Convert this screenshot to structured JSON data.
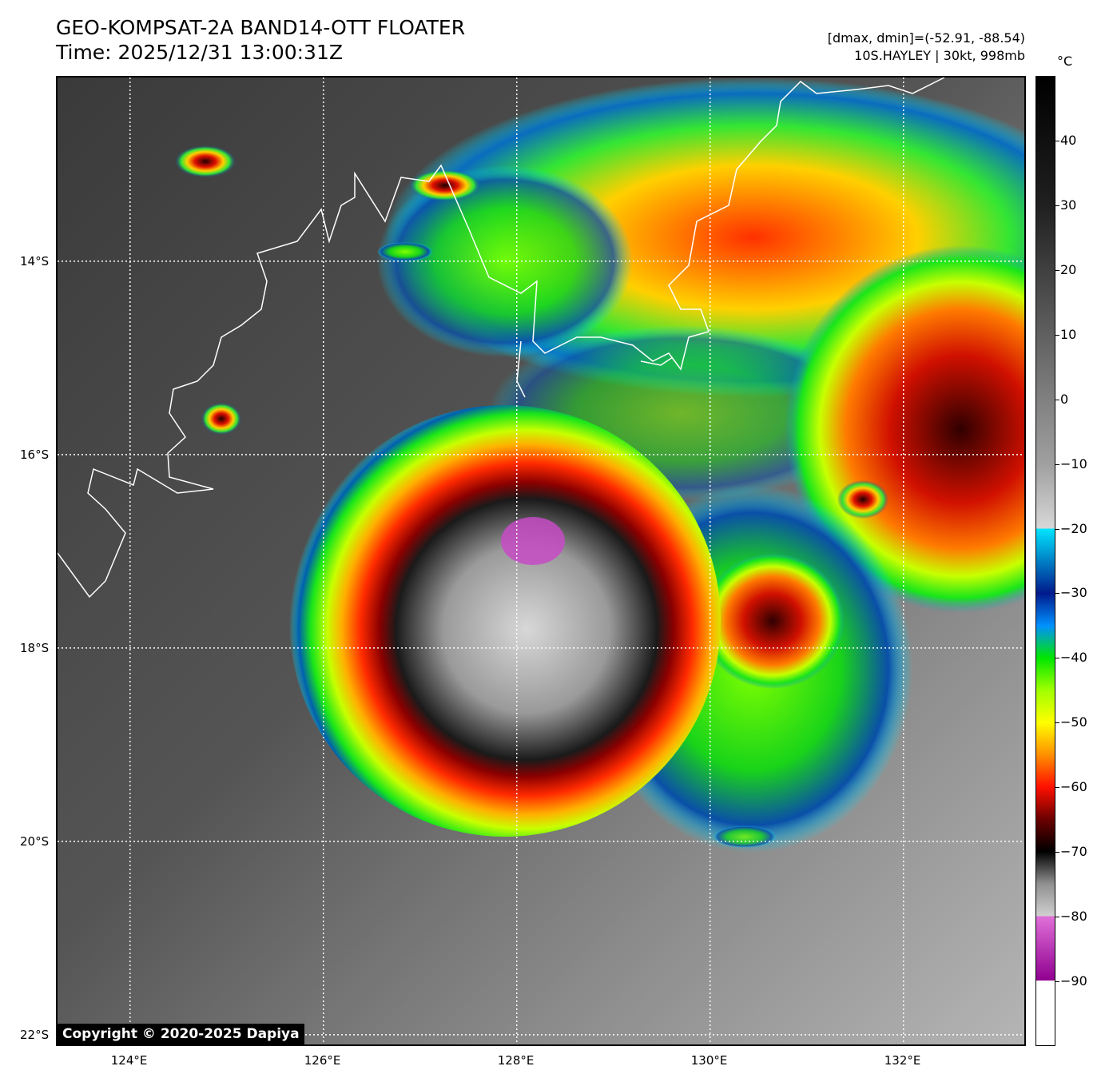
{
  "header": {
    "title_line1": "GEO-KOMPSAT-2A BAND14-OTT FLOATER",
    "title_line2": "Time: 2025/12/31 13:00:31Z",
    "info_line1": "[dmax, dmin]=(-52.91, -88.54)",
    "info_line2": "10S.HAYLEY | 30kt, 998mb"
  },
  "map": {
    "lon_range": [
      123.25,
      133.25
    ],
    "lat_range": [
      -22.1,
      -12.1
    ],
    "lon_ticks": [
      {
        "value": 124,
        "label": "124°E"
      },
      {
        "value": 126,
        "label": "126°E"
      },
      {
        "value": 128,
        "label": "128°E"
      },
      {
        "value": 130,
        "label": "130°E"
      },
      {
        "value": 132,
        "label": "132°E"
      }
    ],
    "lat_ticks": [
      {
        "value": -14,
        "label": "14°S"
      },
      {
        "value": -16,
        "label": "16°S"
      },
      {
        "value": -18,
        "label": "18°S"
      },
      {
        "value": -20,
        "label": "20°S"
      },
      {
        "value": -22,
        "label": "22°S"
      }
    ],
    "gridlines": "dotted",
    "gridline_color": "#ffffff",
    "coastline_color": "#ffffff",
    "storm_center": {
      "lon": 128.2,
      "lat": -17.2
    }
  },
  "colorbar": {
    "unit": "°C",
    "range": [
      -100,
      50
    ],
    "ticks": [
      40,
      30,
      20,
      10,
      0,
      -10,
      -20,
      -30,
      -40,
      -50,
      -60,
      -70,
      -80,
      -90
    ],
    "tick_labels": [
      "40",
      "30",
      "20",
      "10",
      "0",
      "−10",
      "−20",
      "−30",
      "−40",
      "−50",
      "−60",
      "−70",
      "−80",
      "−90"
    ]
  },
  "copyright": "Copyright © 2020-2025 Dapiya"
}
